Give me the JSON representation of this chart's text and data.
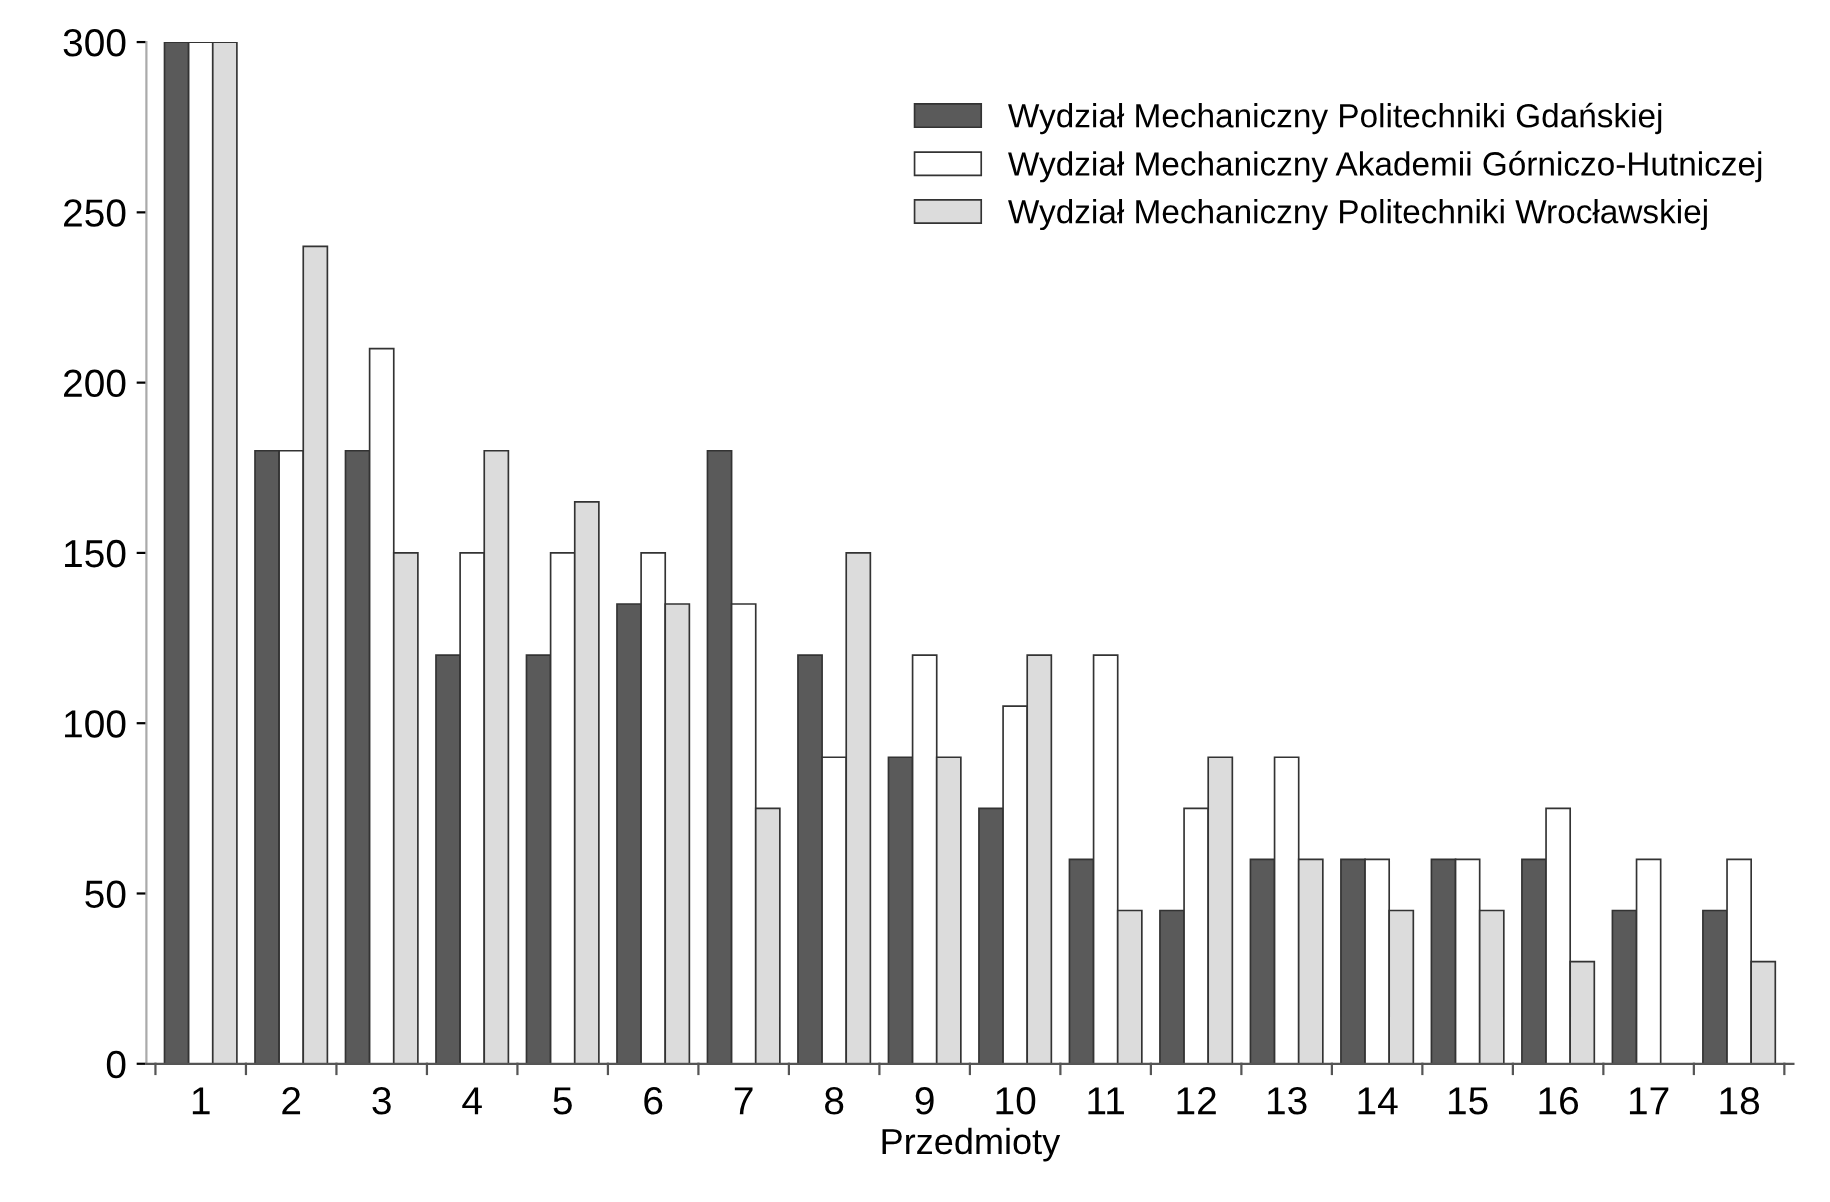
{
  "chart_data": {
    "type": "bar",
    "xlabel": "Przedmioty",
    "categories": [
      "1",
      "2",
      "3",
      "4",
      "5",
      "6",
      "7",
      "8",
      "9",
      "10",
      "11",
      "12",
      "13",
      "14",
      "15",
      "16",
      "17",
      "18"
    ],
    "series": [
      {
        "name": "Wydział Mechaniczny Politechniki Gdańskiej",
        "color": "#5a5a5a",
        "values": [
          300,
          180,
          180,
          120,
          120,
          135,
          180,
          120,
          90,
          75,
          60,
          45,
          60,
          60,
          60,
          60,
          45,
          45
        ]
      },
      {
        "name": "Wydział Mechaniczny Akademii Górniczo-Hutniczej",
        "color": "#ffffff",
        "values": [
          300,
          180,
          210,
          150,
          150,
          150,
          135,
          90,
          120,
          105,
          120,
          75,
          90,
          60,
          60,
          75,
          60,
          60
        ]
      },
      {
        "name": "Wydział Mechaniczny Politechniki Wrocławskiej",
        "color": "#dcdcdc",
        "values": [
          300,
          240,
          150,
          180,
          165,
          135,
          75,
          150,
          90,
          120,
          45,
          90,
          60,
          45,
          45,
          30,
          null,
          30
        ]
      }
    ],
    "ylim": [
      0,
      300
    ],
    "yticks": [
      0,
      50,
      100,
      150,
      200,
      250,
      300
    ],
    "grid": false,
    "legend": "top right"
  }
}
